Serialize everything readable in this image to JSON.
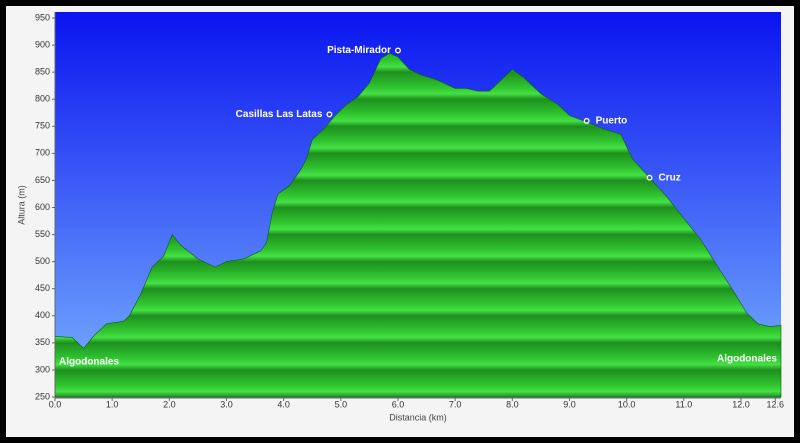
{
  "chart_data": {
    "type": "area",
    "x_label": "Distancia  (km)",
    "y_label": "Altura (m)",
    "x": [
      0.0,
      0.3,
      0.5,
      0.7,
      0.9,
      1.2,
      1.3,
      1.5,
      1.7,
      1.9,
      2.05,
      2.2,
      2.5,
      2.8,
      3.0,
      3.3,
      3.6,
      3.7,
      3.8,
      3.9,
      4.1,
      4.3,
      4.4,
      4.5,
      4.7,
      4.9,
      5.1,
      5.3,
      5.5,
      5.7,
      5.85,
      6.0,
      6.2,
      6.4,
      6.7,
      7.0,
      7.2,
      7.4,
      7.6,
      7.8,
      8.0,
      8.2,
      8.5,
      8.8,
      9.0,
      9.3,
      9.6,
      9.9,
      10.1,
      10.4,
      10.7,
      11.0,
      11.3,
      11.6,
      11.9,
      12.1,
      12.3,
      12.5,
      12.7
    ],
    "values": [
      362,
      360,
      340,
      365,
      385,
      390,
      400,
      440,
      490,
      510,
      550,
      530,
      505,
      490,
      500,
      505,
      520,
      535,
      590,
      625,
      640,
      670,
      690,
      725,
      745,
      770,
      790,
      805,
      830,
      875,
      885,
      878,
      855,
      845,
      835,
      820,
      820,
      815,
      815,
      835,
      855,
      840,
      810,
      790,
      770,
      758,
      745,
      735,
      690,
      655,
      620,
      580,
      540,
      490,
      440,
      405,
      385,
      380,
      382
    ],
    "color": "#2fc42f",
    "xlim": [
      0,
      12.7
    ],
    "ylim": [
      250,
      950
    ],
    "xticks": [
      {
        "value": 0,
        "label": "0.0"
      },
      {
        "value": 1,
        "label": "1.0"
      },
      {
        "value": 2,
        "label": "2.0"
      },
      {
        "value": 3,
        "label": "3.0"
      },
      {
        "value": 4,
        "label": "4.0"
      },
      {
        "value": 5,
        "label": "5.0"
      },
      {
        "value": 6,
        "label": "6.0"
      },
      {
        "value": 7,
        "label": "7.0"
      },
      {
        "value": 8,
        "label": "8.0"
      },
      {
        "value": 9,
        "label": "9.0"
      },
      {
        "value": 10,
        "label": "10.0"
      },
      {
        "value": 11,
        "label": "11.0"
      },
      {
        "value": 12,
        "label": "12.0"
      },
      12.6
    ],
    "yticks": [
      250,
      300,
      350,
      400,
      450,
      500,
      550,
      600,
      650,
      700,
      750,
      800,
      850,
      900,
      950
    ],
    "annotations": [
      {
        "label": "Pista-Mirador",
        "x": 6.0,
        "y": 890
      },
      {
        "label": "Casillas Las Latas",
        "x": 4.8,
        "y": 772
      },
      {
        "label": "Puerto",
        "x": 9.3,
        "y": 760
      },
      {
        "label": "Cruz",
        "x": 10.4,
        "y": 655
      }
    ],
    "start_label": "Algodonales",
    "end_label": "Algodonales"
  }
}
